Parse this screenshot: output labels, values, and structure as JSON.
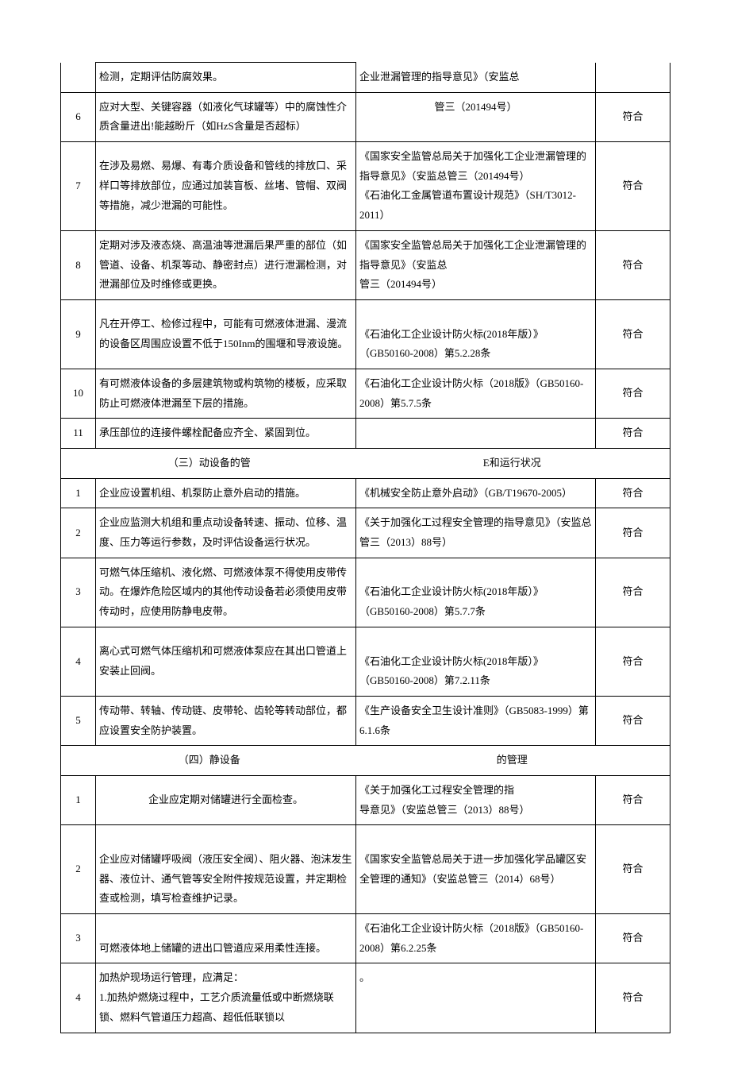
{
  "rows": [
    {
      "num": "",
      "req": "检测，定期评估防腐效果。",
      "basis": "企业泄漏管理的指导意见》（安监总",
      "status": "",
      "req_class": "",
      "merge_basis_status": false,
      "no_bottom_num": true,
      "no_top_num": true,
      "no_bottom_status": true,
      "no_top_status": true,
      "no_top_basis": true
    },
    {
      "num": "6",
      "req": "应对大型、关键容器（如液化气球罐等）中的腐蚀性介质含量进出!能越盼斤（如HzS含量是否超标）",
      "basis": "管三（201494号）",
      "status": "符合",
      "basis_class": "center-txt",
      "basis_valign_top": true
    },
    {
      "num": "7",
      "req": "在涉及易燃、易爆、有毒介质设备和管线的排放口、采样口等排放部位，应通过加装盲板、丝堵、管帽、双阀等措施，减少泄漏的可能性。",
      "basis": "《国家安全监管总局关于加强化工企业泄漏管理的指导意见》（安监总管三（201494号）\n《石油化工金属管道布置设计规范》（SH/T3012-2011）",
      "status": "符合"
    },
    {
      "num": "8",
      "req": "定期对涉及液态烧、高温油等泄漏后果严重的部位（如管道、设备、机泵等动、静密封点）进行泄漏检测，对泄漏部位及时维修或更换。",
      "basis": "《国家安全监管总局关于加强化工企业泄漏管理的指导意见》（安监总\n管三（201494号）",
      "status": "符合"
    },
    {
      "num": "9",
      "req": "凡在开停工、检修过程中，可能有可燃液体泄漏、漫流的设备区周围应设置不低于150Inm的围堰和导液设施。",
      "basis": "\n《石油化工企业设计防火标(2018年版）》（GB50160-2008）第5.2.28条",
      "status": "符合"
    },
    {
      "num": "10",
      "req": "有可燃液体设备的多层建筑物或构筑物的楼板，应采取防止可燃液体泄漏至下层的措施。",
      "basis": "《石油化工企业设计防火标（2018版》（GB50160-2008）第5.7.5条",
      "status": "符合"
    },
    {
      "num": "11",
      "req": "承压部位的连接件螺栓配备应齐全、紧固到位。",
      "basis": "",
      "status": "符合"
    }
  ],
  "section3": {
    "left": "（三）动设备的管",
    "right": "E和运行状况"
  },
  "rows2": [
    {
      "num": "1",
      "req": "企业应设置机组、机泵防止意外启动的措施。",
      "basis": "《机械安全防止意外启动》（GB/T19670-2005）",
      "status": "符合"
    },
    {
      "num": "2",
      "req": "企业应监测大机组和重点动设备转速、振动、位移、温度、压力等运行参数，及时评估设备运行状况。",
      "basis": "《关于加强化工过程安全管理的指导意见》（安监总管三（2013）88号）\n",
      "status": "符合"
    },
    {
      "num": "3",
      "req": "可燃气体压缩机、液化燃、可燃液体泵不得使用皮带传动。在爆炸危险区域内的其他传动设备若必须使用皮带传动时，应使用防静电皮带。",
      "basis": "\n《石油化工企业设计防火标(2018年版）》（GB50160-2008）第5.7.7条",
      "status": "符合"
    },
    {
      "num": "4",
      "req": "离心式可燃气体压缩机和可燃液体泵应在其出口管道上安装止回阀。",
      "basis": "\n《石油化工企业设计防火标(2018年版）》（GB50160-2008）第7.2.11条",
      "status": "符合"
    },
    {
      "num": "5",
      "req": "传动带、转轴、传动链、皮带轮、齿轮等转动部位，都应设置安全防护装置。",
      "basis": "《生产设备安全卫生设计准则》（GB5083-1999）第6.1.6条",
      "status": "符合"
    }
  ],
  "section4": {
    "left": "（四）静设备",
    "right": "的管理"
  },
  "rows3": [
    {
      "num": "1",
      "req": "企业应定期对储罐进行全面检查。",
      "basis": "《关于加强化工过程安全管理的指\n导意见》（安监总管三（2013）88号）",
      "status": "符合",
      "req_class": "center-txt"
    },
    {
      "num": "2",
      "req": "\n企业应对储罐呼吸阀（液压安全阀）、阻火器、泡沫发生器、液位计、通气管等安全附件按规范设置，并定期检查或检测，填写检查维护记录。",
      "basis": "《国家安全监管总局关于进一步加强化学品罐区安全管理的通知》（安监总管三（2014）68号）\n",
      "status": "符合"
    },
    {
      "num": "3",
      "req": "\n可燃液体地上储罐的进出口管道应采用柔性连接。",
      "basis": "《石油化工企业设计防火标（2018版》（GB50160-2008）第6.2.25条\n",
      "status": "符合"
    },
    {
      "num": "4",
      "req": "加热炉现场运行管理，应满足：\n1.加热炉燃烧过程中，工艺介质流量低或中断燃烧联锁、燃料气管道压力超高、超低低联锁以",
      "basis": "。",
      "status": "符合",
      "basis_valign_top": true
    }
  ]
}
